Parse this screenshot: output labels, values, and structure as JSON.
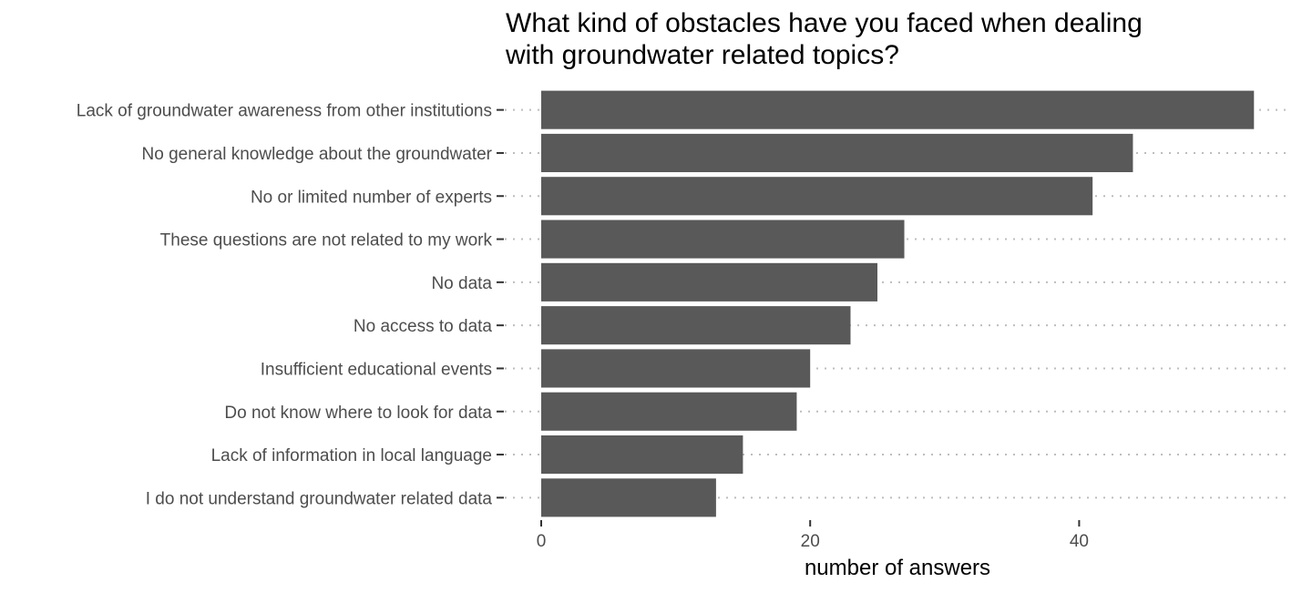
{
  "chart_data": {
    "type": "bar",
    "orientation": "horizontal",
    "title": "What kind of obstacles have you faced when dealing\nwith groundwater related topics?",
    "xlabel": "number of answers",
    "ylabel": "",
    "categories": [
      "Lack of groundwater awareness from other institutions",
      "No general knowledge about the groundwater",
      "No or limited number of experts",
      "These questions are not related to my work",
      "No data",
      "No access to data",
      "Insufficient educational events",
      "Do not know where to look for data",
      "Lack of information in local language",
      "I do not understand groundwater related data"
    ],
    "values": [
      53,
      44,
      41,
      27,
      25,
      23,
      20,
      19,
      15,
      13
    ],
    "xlim": [
      0,
      55.5
    ],
    "xticks": [
      0,
      20,
      40
    ],
    "xtick_labels": [
      "0",
      "20",
      "40"
    ],
    "grid": "major y dotted",
    "legend": "none",
    "bar_color": "#595959",
    "grid_color": "#bdbdbd"
  }
}
